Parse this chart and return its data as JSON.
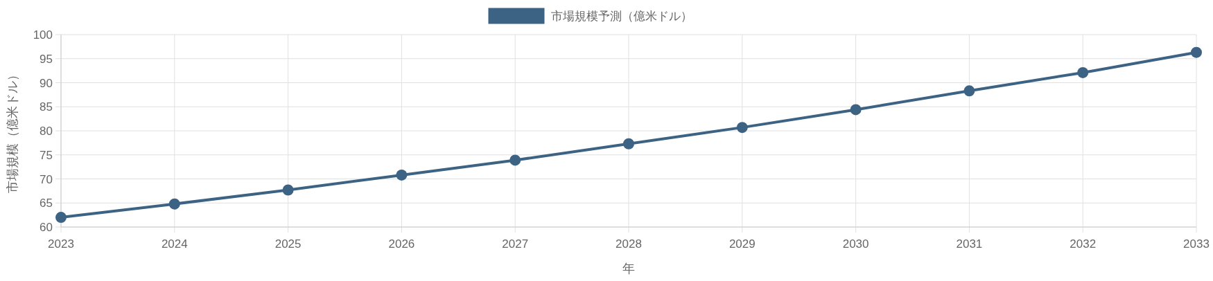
{
  "chart_data": {
    "type": "line",
    "xlabel": "年",
    "ylabel": "市場規模（億米ドル）",
    "categories": [
      "2023",
      "2024",
      "2025",
      "2026",
      "2027",
      "2028",
      "2029",
      "2030",
      "2031",
      "2032",
      "2033"
    ],
    "series": [
      {
        "name": "市場規模予測（億米ドル）",
        "color": "#3d6384",
        "values": [
          62.0,
          64.8,
          67.7,
          70.8,
          73.9,
          77.3,
          80.7,
          84.4,
          88.3,
          92.1,
          96.3
        ]
      }
    ],
    "ylim": [
      60,
      100
    ],
    "yticks": [
      60,
      65,
      70,
      75,
      80,
      85,
      90,
      95,
      100
    ],
    "grid": true,
    "legend": "top",
    "marker": "circle",
    "line_style": "solid"
  }
}
